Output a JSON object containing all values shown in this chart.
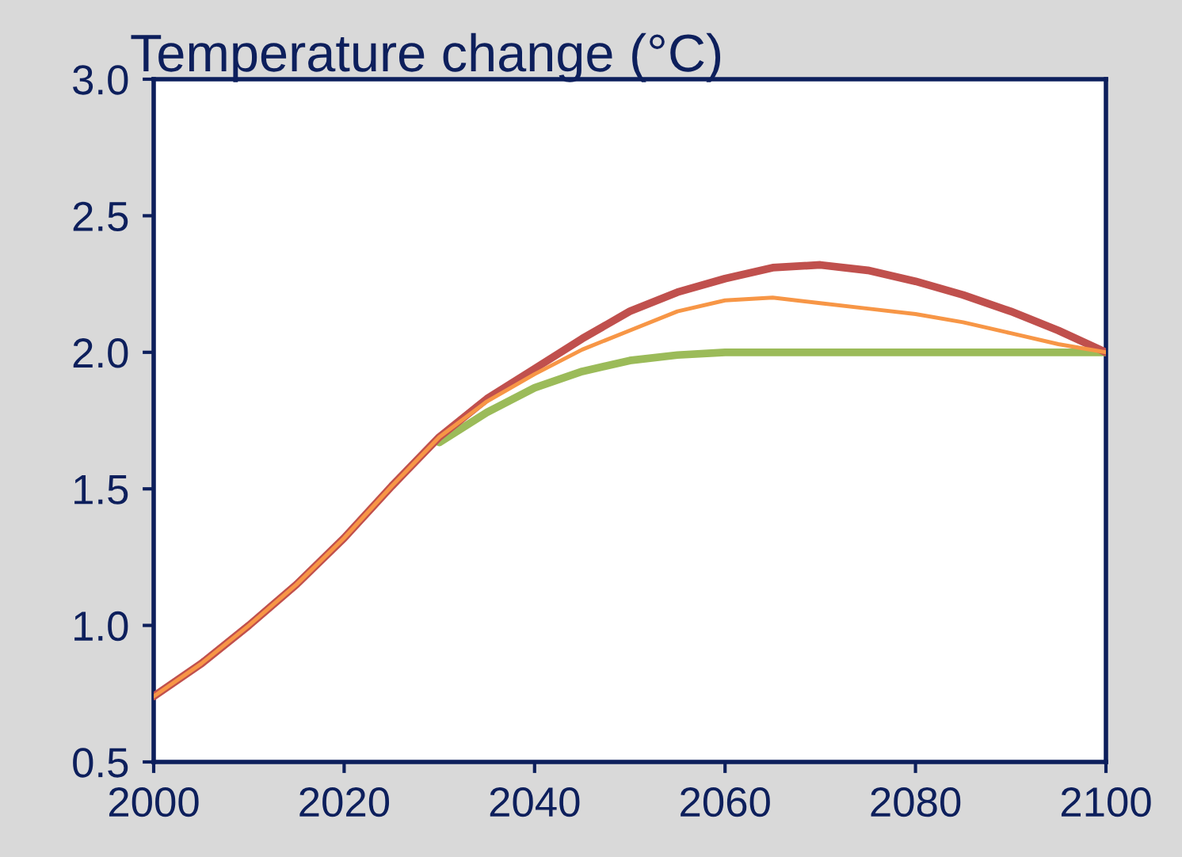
{
  "chart_data": {
    "type": "line",
    "title": "Temperature change (°C)",
    "x": [
      2000,
      2005,
      2010,
      2015,
      2020,
      2025,
      2030,
      2035,
      2040,
      2045,
      2050,
      2055,
      2060,
      2065,
      2070,
      2075,
      2080,
      2085,
      2090,
      2095,
      2100
    ],
    "series": [
      {
        "color": "#9bbb59",
        "values": [
          null,
          null,
          null,
          null,
          null,
          null,
          1.67,
          1.78,
          1.87,
          1.93,
          1.97,
          1.99,
          2.0,
          2.0,
          2.0,
          2.0,
          2.0,
          2.0,
          2.0,
          2.0,
          2.0
        ]
      },
      {
        "color": "#f79646",
        "values": [
          0.74,
          0.86,
          1.0,
          1.15,
          1.32,
          1.51,
          1.69,
          1.82,
          1.92,
          2.01,
          2.08,
          2.15,
          2.19,
          2.2,
          2.18,
          2.16,
          2.14,
          2.11,
          2.07,
          2.03,
          2.0
        ]
      },
      {
        "color": "#c0504d",
        "values": [
          0.74,
          0.86,
          1.0,
          1.15,
          1.32,
          1.51,
          1.69,
          1.83,
          1.94,
          2.05,
          2.15,
          2.22,
          2.27,
          2.31,
          2.32,
          2.3,
          2.26,
          2.21,
          2.15,
          2.08,
          2.0
        ]
      }
    ],
    "xlim": [
      2000,
      2100
    ],
    "xticks": [
      2000,
      2020,
      2040,
      2060,
      2080,
      2100
    ],
    "ylim": [
      0.5,
      3.0
    ],
    "yticks": [
      {
        "value": 0.5,
        "label": "0.5"
      },
      {
        "value": 1.0,
        "label": "1.0"
      },
      {
        "value": 1.5,
        "label": "1.5"
      },
      {
        "value": 2.0,
        "label": "2.0"
      },
      {
        "value": 2.5,
        "label": "2.5"
      },
      {
        "value": 3.0,
        "label": "3.0"
      }
    ],
    "grid": false,
    "marker": "none",
    "line_style": "solid"
  }
}
